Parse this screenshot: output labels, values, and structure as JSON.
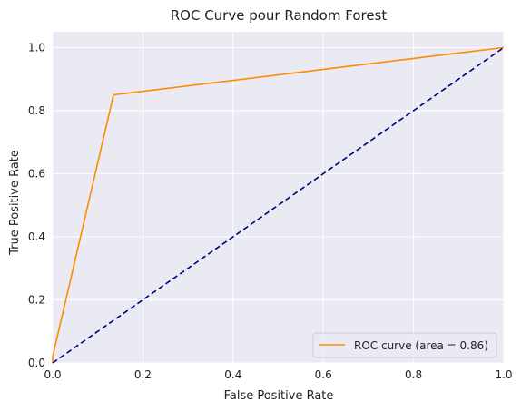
{
  "chart_data": {
    "type": "line",
    "title": "ROC Curve pour Random Forest",
    "xlabel": "False Positive Rate",
    "ylabel": "True Positive Rate",
    "xlim": [
      0.0,
      1.0
    ],
    "ylim": [
      0.0,
      1.05
    ],
    "xticks": [
      "0.0",
      "0.2",
      "0.4",
      "0.6",
      "0.8",
      "1.0"
    ],
    "yticks": [
      "0.0",
      "0.2",
      "0.4",
      "0.6",
      "0.8",
      "1.0"
    ],
    "grid": true,
    "legend_position": "bottom-right",
    "series": [
      {
        "name": "ROC curve (area = 0.86)",
        "color": "#ff8c00",
        "style": "solid",
        "x": [
          0.0,
          0.0,
          0.135,
          1.0
        ],
        "y": [
          0.0,
          0.02,
          0.85,
          1.0
        ]
      },
      {
        "color": "#000080",
        "style": "dashed",
        "x": [
          0.0,
          1.0
        ],
        "y": [
          0.0,
          1.0
        ]
      }
    ],
    "colors": {
      "background": "#eaeaf2",
      "grid": "#ffffff"
    }
  }
}
